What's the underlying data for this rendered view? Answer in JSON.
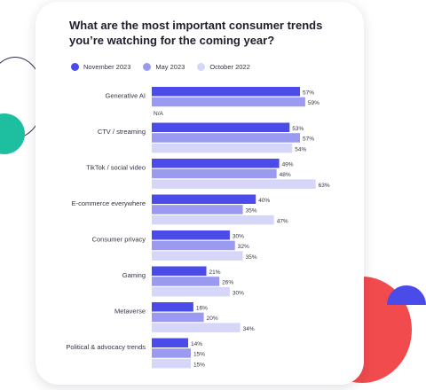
{
  "chart_data": {
    "type": "bar",
    "orientation": "horizontal",
    "title": "What are the most important consumer trends you’re watching for the coming year?",
    "categories": [
      "Generative AI",
      "CTV / streaming",
      "TikTok / social video",
      "E-commerce everywhere",
      "Consumer privacy",
      "Gaming",
      "Metaverse",
      "Political & advocacy trends"
    ],
    "series": [
      {
        "name": "November 2023",
        "color": "#4a4be8",
        "values": [
          57,
          53,
          49,
          40,
          30,
          21,
          16,
          14
        ]
      },
      {
        "name": "May 2023",
        "color": "#9a9af0",
        "values": [
          59,
          57,
          48,
          35,
          32,
          26,
          20,
          15
        ]
      },
      {
        "name": "October 2022",
        "color": "#d6d6f8",
        "values": [
          null,
          54,
          63,
          47,
          35,
          30,
          34,
          15
        ]
      }
    ],
    "value_suffix": "%",
    "missing_label": "N/A",
    "legend_position": "top",
    "grid": false
  }
}
